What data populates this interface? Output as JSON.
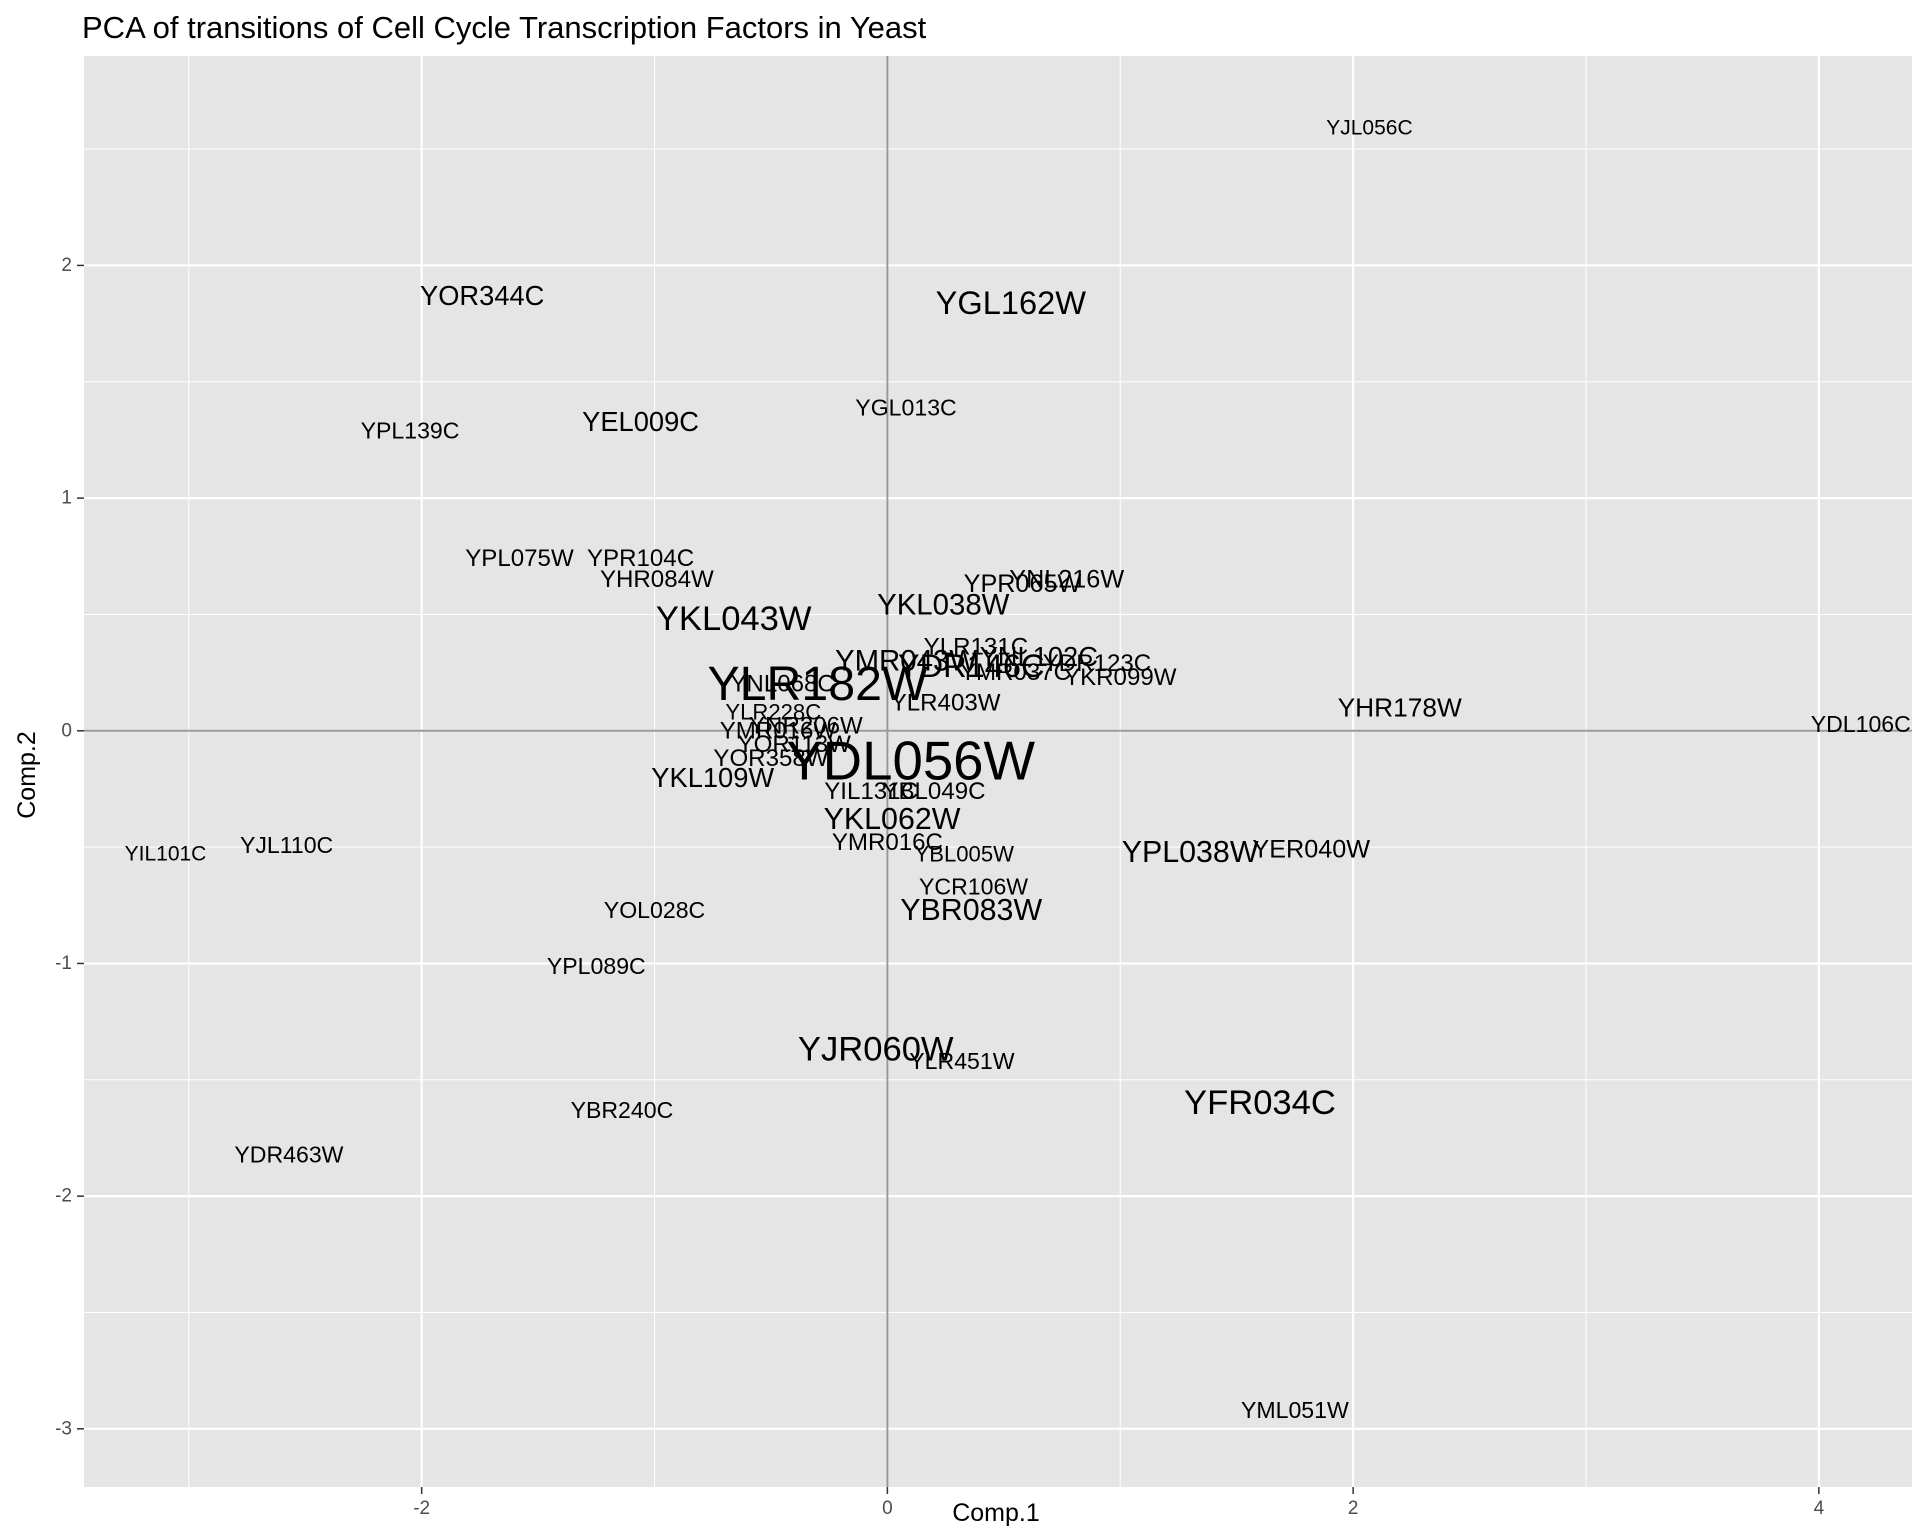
{
  "chart_data": {
    "type": "scatter",
    "title": "PCA of transitions of Cell Cycle Transcription Factors in Yeast",
    "xlabel": "Comp.1",
    "ylabel": "Comp.2",
    "xlim": [
      -3.45,
      4.4
    ],
    "ylim": [
      -3.25,
      2.9
    ],
    "xticks": [
      -2,
      0,
      2,
      4
    ],
    "yticks": [
      -3,
      -2,
      -1,
      0,
      1,
      2
    ],
    "grid": true,
    "reference_lines": {
      "x": 0,
      "y": 0
    },
    "colors": {
      "panel": "#e5e5e5",
      "grid_major": "#ffffff",
      "reference": "#999999",
      "text": "#000000",
      "tick_text": "#4d4d4d"
    },
    "points": [
      {
        "label": "YJL056C",
        "x": 2.07,
        "y": 2.59,
        "size": 1.0
      },
      {
        "label": "YOR344C",
        "x": -1.74,
        "y": 1.87,
        "size": 1.3
      },
      {
        "label": "YGL162W",
        "x": 0.53,
        "y": 1.84,
        "size": 1.55
      },
      {
        "label": "YGL013C",
        "x": 0.08,
        "y": 1.39,
        "size": 1.1
      },
      {
        "label": "YEL009C",
        "x": -1.06,
        "y": 1.33,
        "size": 1.3
      },
      {
        "label": "YPL139C",
        "x": -2.05,
        "y": 1.29,
        "size": 1.1
      },
      {
        "label": "YPL075W",
        "x": -1.58,
        "y": 0.74,
        "size": 1.15
      },
      {
        "label": "YPR104C",
        "x": -1.06,
        "y": 0.74,
        "size": 1.15
      },
      {
        "label": "YHR084W",
        "x": -0.99,
        "y": 0.65,
        "size": 1.15
      },
      {
        "label": "YNL216W",
        "x": 0.77,
        "y": 0.65,
        "size": 1.2
      },
      {
        "label": "YPR065W",
        "x": 0.58,
        "y": 0.63,
        "size": 1.2
      },
      {
        "label": "YKL038W",
        "x": 0.24,
        "y": 0.54,
        "size": 1.4
      },
      {
        "label": "YKL043W",
        "x": -0.66,
        "y": 0.48,
        "size": 1.65
      },
      {
        "label": "YLR131C",
        "x": 0.38,
        "y": 0.36,
        "size": 1.15
      },
      {
        "label": "YNL102C",
        "x": 0.65,
        "y": 0.32,
        "size": 1.3
      },
      {
        "label": "YMR043W",
        "x": 0.08,
        "y": 0.3,
        "size": 1.4
      },
      {
        "label": "YDR123C",
        "x": 0.9,
        "y": 0.29,
        "size": 1.15
      },
      {
        "label": "YDR146C",
        "x": 0.36,
        "y": 0.28,
        "size": 1.55
      },
      {
        "label": "YMR037C",
        "x": 0.55,
        "y": 0.25,
        "size": 1.15
      },
      {
        "label": "YKR099W",
        "x": 1.0,
        "y": 0.23,
        "size": 1.15
      },
      {
        "label": "YLR182W",
        "x": -0.3,
        "y": 0.2,
        "size": 2.3
      },
      {
        "label": "YNL068C",
        "x": -0.45,
        "y": 0.2,
        "size": 1.15
      },
      {
        "label": "YLR403W",
        "x": 0.25,
        "y": 0.12,
        "size": 1.15
      },
      {
        "label": "YHR178W",
        "x": 2.2,
        "y": 0.1,
        "size": 1.25
      },
      {
        "label": "YLR228C",
        "x": -0.49,
        "y": 0.08,
        "size": 1.05
      },
      {
        "label": "YDL106C",
        "x": 4.18,
        "y": 0.03,
        "size": 1.1
      },
      {
        "label": "YNR206W",
        "x": -0.35,
        "y": 0.02,
        "size": 1.15
      },
      {
        "label": "YMR016W",
        "x": -0.47,
        "y": 0.0,
        "size": 1.15
      },
      {
        "label": "YOR113W",
        "x": -0.4,
        "y": -0.06,
        "size": 1.15
      },
      {
        "label": "YOR358W",
        "x": -0.5,
        "y": -0.12,
        "size": 1.15
      },
      {
        "label": "YDL056W",
        "x": 0.1,
        "y": -0.13,
        "size": 2.6
      },
      {
        "label": "YKL109W",
        "x": -0.75,
        "y": -0.2,
        "size": 1.3
      },
      {
        "label": "YIL131C",
        "x": -0.07,
        "y": -0.26,
        "size": 1.15
      },
      {
        "label": "YBL049C",
        "x": 0.2,
        "y": -0.26,
        "size": 1.15
      },
      {
        "label": "YKL062W",
        "x": 0.02,
        "y": -0.38,
        "size": 1.45
      },
      {
        "label": "YIL101C",
        "x": -3.1,
        "y": -0.53,
        "size": 1.0
      },
      {
        "label": "YJL110C",
        "x": -2.58,
        "y": -0.49,
        "size": 1.1
      },
      {
        "label": "YMR016C",
        "x": 0.0,
        "y": -0.48,
        "size": 1.15
      },
      {
        "label": "YBL005W",
        "x": 0.33,
        "y": -0.53,
        "size": 1.05
      },
      {
        "label": "YPL038W",
        "x": 1.3,
        "y": -0.52,
        "size": 1.45
      },
      {
        "label": "YER040W",
        "x": 1.82,
        "y": -0.51,
        "size": 1.2
      },
      {
        "label": "YCR106W",
        "x": 0.37,
        "y": -0.67,
        "size": 1.1
      },
      {
        "label": "YBR083W",
        "x": 0.36,
        "y": -0.77,
        "size": 1.45
      },
      {
        "label": "YOL028C",
        "x": -1.0,
        "y": -0.77,
        "size": 1.1
      },
      {
        "label": "YPL089C",
        "x": -1.25,
        "y": -1.01,
        "size": 1.1
      },
      {
        "label": "YJR060W",
        "x": -0.05,
        "y": -1.37,
        "size": 1.65
      },
      {
        "label": "YLR451W",
        "x": 0.32,
        "y": -1.42,
        "size": 1.1
      },
      {
        "label": "YFR034C",
        "x": 1.6,
        "y": -1.6,
        "size": 1.65
      },
      {
        "label": "YBR240C",
        "x": -1.14,
        "y": -1.63,
        "size": 1.1
      },
      {
        "label": "YDR463W",
        "x": -2.57,
        "y": -1.82,
        "size": 1.1
      },
      {
        "label": "YML051W",
        "x": 1.75,
        "y": -2.92,
        "size": 1.1
      }
    ]
  }
}
